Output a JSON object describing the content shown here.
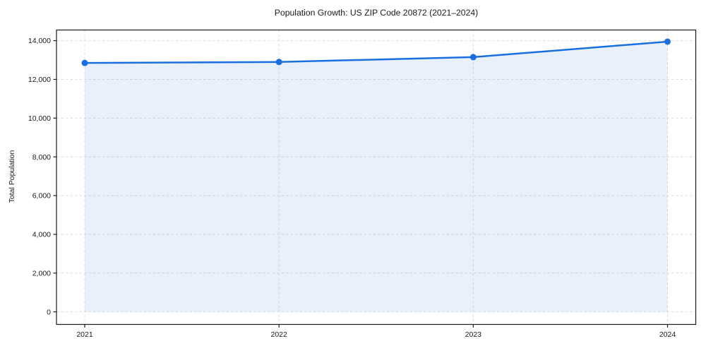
{
  "chart_data": {
    "type": "area",
    "title": "Population Growth: US ZIP Code 20872 (2021–2024)",
    "xlabel": "",
    "ylabel": "Total Population",
    "categories": [
      "2021",
      "2022",
      "2023",
      "2024"
    ],
    "series": [
      {
        "name": "Total Population",
        "values": [
          12850,
          12900,
          13150,
          13950
        ]
      }
    ],
    "yticks": [
      0,
      2000,
      4000,
      6000,
      8000,
      10000,
      12000,
      14000
    ],
    "ytick_labels": [
      "0",
      "2,000",
      "4,000",
      "6,000",
      "8,000",
      "10,000",
      "12,000",
      "14,000"
    ],
    "ylim": [
      -650,
      14550
    ],
    "fill_baseline": 0,
    "grid": "both-dashed",
    "legend": "none",
    "colors": {
      "line": "#1a6fe0",
      "marker": "#1a6fe0",
      "fill": "rgba(26,111,224,0.10)",
      "grid": "#dedede",
      "spine": "#1a1a1a",
      "tick_text": "#1a1a1a",
      "background": "#ffffff"
    }
  }
}
